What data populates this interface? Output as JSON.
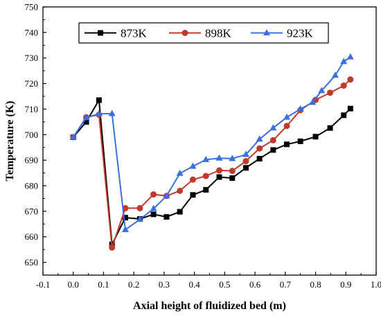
{
  "chart_data": {
    "type": "line",
    "title": "",
    "xlabel": "Axial height of fluidized bed (m)",
    "ylabel": "Temperature (K)",
    "xlim": [
      -0.1,
      1.0
    ],
    "ylim": [
      645,
      750
    ],
    "xticks": [
      "-0.1",
      "0.0",
      "0.1",
      "0.2",
      "0.3",
      "0.4",
      "0.5",
      "0.6",
      "0.7",
      "0.8",
      "0.9",
      "1.0"
    ],
    "yticks": [
      "650",
      "660",
      "670",
      "680",
      "690",
      "700",
      "710",
      "720",
      "730",
      "740",
      "750"
    ],
    "grid": false,
    "legend_position": "top-center",
    "series": [
      {
        "name": "873K",
        "color": "#000000",
        "marker": "square",
        "points": [
          [
            0.0,
            699.0
          ],
          [
            0.043,
            705.0
          ],
          [
            0.085,
            713.5
          ],
          [
            0.128,
            657.0
          ],
          [
            0.172,
            667.5
          ],
          [
            0.22,
            667.0
          ],
          [
            0.265,
            668.8
          ],
          [
            0.308,
            667.8
          ],
          [
            0.352,
            669.8
          ],
          [
            0.395,
            676.4
          ],
          [
            0.438,
            678.4
          ],
          [
            0.482,
            683.4
          ],
          [
            0.525,
            683.0
          ],
          [
            0.57,
            687.0
          ],
          [
            0.615,
            690.6
          ],
          [
            0.66,
            694.0
          ],
          [
            0.705,
            696.2
          ],
          [
            0.75,
            697.4
          ],
          [
            0.8,
            699.2
          ],
          [
            0.848,
            702.6
          ],
          [
            0.893,
            707.6
          ],
          [
            0.915,
            710.2
          ]
        ]
      },
      {
        "name": "898K",
        "color": "#c0392b",
        "marker": "circle",
        "points": [
          [
            0.0,
            699.0
          ],
          [
            0.043,
            706.8
          ],
          [
            0.085,
            707.8
          ],
          [
            0.128,
            655.8
          ],
          [
            0.172,
            671.2
          ],
          [
            0.22,
            671.2
          ],
          [
            0.265,
            676.6
          ],
          [
            0.308,
            676.0
          ],
          [
            0.352,
            678.0
          ],
          [
            0.395,
            682.4
          ],
          [
            0.438,
            683.8
          ],
          [
            0.482,
            686.0
          ],
          [
            0.525,
            685.8
          ],
          [
            0.57,
            689.6
          ],
          [
            0.615,
            694.6
          ],
          [
            0.66,
            697.8
          ],
          [
            0.705,
            703.4
          ],
          [
            0.75,
            709.6
          ],
          [
            0.8,
            713.6
          ],
          [
            0.848,
            716.4
          ],
          [
            0.893,
            719.2
          ],
          [
            0.915,
            721.6
          ]
        ]
      },
      {
        "name": "923K",
        "color": "#3a6fe0",
        "marker": "triangle",
        "points": [
          [
            0.0,
            699.0
          ],
          [
            0.043,
            706.6
          ],
          [
            0.085,
            708.2
          ],
          [
            0.128,
            708.2
          ],
          [
            0.172,
            662.8
          ],
          [
            0.22,
            666.8
          ],
          [
            0.265,
            671.0
          ],
          [
            0.308,
            676.0
          ],
          [
            0.352,
            684.8
          ],
          [
            0.395,
            687.6
          ],
          [
            0.438,
            690.2
          ],
          [
            0.482,
            690.8
          ],
          [
            0.525,
            690.6
          ],
          [
            0.57,
            692.2
          ],
          [
            0.615,
            698.2
          ],
          [
            0.66,
            702.6
          ],
          [
            0.705,
            706.8
          ],
          [
            0.75,
            710.0
          ],
          [
            0.79,
            712.6
          ],
          [
            0.82,
            717.2
          ],
          [
            0.865,
            723.2
          ],
          [
            0.893,
            728.6
          ],
          [
            0.915,
            730.4
          ]
        ]
      }
    ]
  }
}
